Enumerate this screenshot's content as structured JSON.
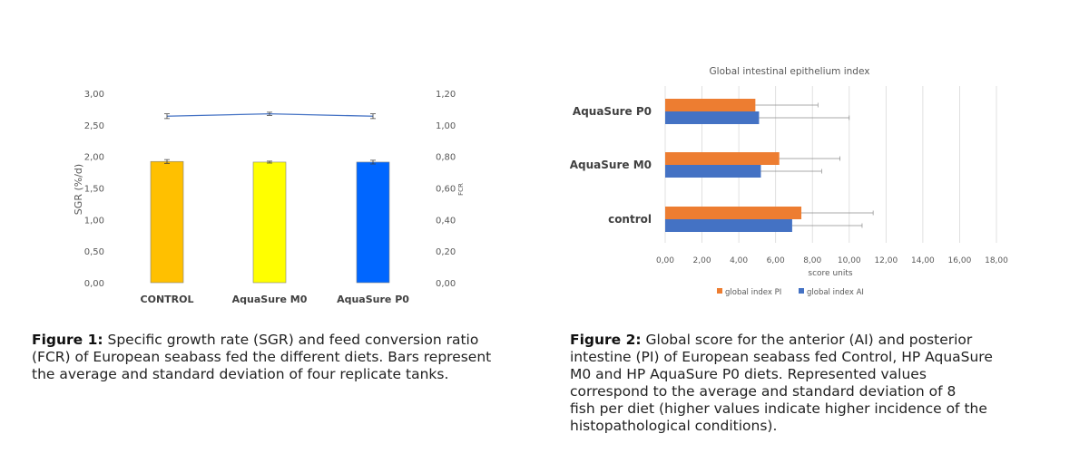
{
  "chart_data": [
    {
      "type": "bar",
      "title": "",
      "categories": [
        "CONTROL",
        "AquaSure M0",
        "AquaSure P0"
      ],
      "y_left": {
        "label": "SGR (%/d)",
        "ylim": [
          0,
          3.0
        ],
        "ticks": [
          "0,00",
          "0,50",
          "1,00",
          "1,50",
          "2,00",
          "2,50",
          "3,00"
        ]
      },
      "y_right": {
        "label": "FCR",
        "ylim": [
          0,
          1.2
        ],
        "ticks": [
          "0,00",
          "0,20",
          "0,40",
          "0,60",
          "0,80",
          "1,00",
          "1,20"
        ]
      },
      "series": [
        {
          "name": "",
          "kind": "bar",
          "axis": "left",
          "values": [
            1.92,
            1.91,
            1.91
          ],
          "errors": [
            0.03,
            0.015,
            0.03
          ],
          "colors": [
            "#ffc000",
            "#ffff00",
            "#0066ff"
          ]
        },
        {
          "name": "",
          "kind": "line",
          "axis": "right",
          "values": [
            1.055,
            1.07,
            1.055
          ],
          "errors": [
            0.015,
            0.01,
            0.015
          ],
          "color": "#4472c4"
        }
      ],
      "grid": false
    },
    {
      "type": "bar",
      "orientation": "horizontal",
      "title": "Global intestinal epithelium index",
      "categories": [
        "control",
        "AquaSure M0",
        "AquaSure P0"
      ],
      "xlabel": "score units",
      "xlim": [
        0,
        18
      ],
      "x_ticks": [
        "0,00",
        "2,00",
        "4,00",
        "6,00",
        "8,00",
        "10,00",
        "12,00",
        "14,00",
        "16,00",
        "18,00"
      ],
      "series": [
        {
          "name": "global index PI",
          "color": "#ed7d31",
          "values": [
            7.4,
            6.2,
            4.9
          ],
          "errors": [
            3.9,
            3.3,
            3.4
          ]
        },
        {
          "name": "global index AI",
          "color": "#4472c4",
          "values": [
            6.9,
            5.2,
            5.1
          ],
          "errors": [
            3.8,
            3.3,
            4.9
          ]
        }
      ],
      "legend": "bottom",
      "grid": true
    }
  ],
  "captions": {
    "fig1": {
      "label": "Figure 1:",
      "lines": [
        " Specific growth rate (SGR) and feed conversion ratio",
        "(FCR) of European seabass fed the different diets. Bars represent",
        "the average and standard deviation of four replicate tanks."
      ]
    },
    "fig2": {
      "label": "Figure 2:",
      "lines": [
        " Global score for the anterior (AI) and posterior",
        "intestine (PI) of European seabass fed Control, HP AquaSure",
        "M0 and HP AquaSure P0 diets. Represented values",
        "correspond to the average and standard deviation of 8",
        "fish per diet (higher values indicate higher incidence of the",
        "histopathological conditions)."
      ]
    }
  }
}
